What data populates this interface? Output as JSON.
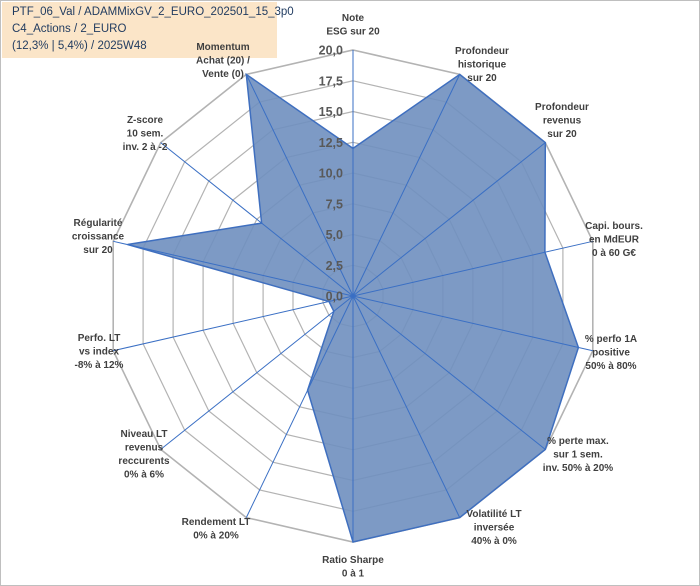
{
  "header": {
    "line1": "PTF_06_Val / ADAMMixGV_2_EURO_202501_15_3p0",
    "line2": "C4_Actions / 2_EURO",
    "line3": "(12,3% | 5,4%) / 2025W48"
  },
  "colors": {
    "area_fill": "#6f8fbf",
    "area_stroke": "#3f6fbf",
    "grid": "#b3b3b3",
    "spoke": "#3a6fc4",
    "header_bg": "#fbe5c8"
  },
  "chart_data": {
    "type": "radar",
    "title": "",
    "range": [
      0,
      20
    ],
    "tick_values": [
      0,
      2.5,
      5,
      7.5,
      10,
      12.5,
      15,
      17.5,
      20
    ],
    "tick_labels": [
      "0,0",
      "2,5",
      "5,0",
      "7,5",
      "10,0",
      "12,5",
      "15,0",
      "17,5",
      "20,0"
    ],
    "axes": [
      [
        "Note",
        "ESG sur 20"
      ],
      [
        "Profondeur",
        "historique",
        "sur 20"
      ],
      [
        "Profondeur",
        "revenus",
        "sur 20"
      ],
      [
        "Capi. bours.",
        "en MdEUR",
        "0 à 60 G€"
      ],
      [
        "% perfo 1A",
        "positive",
        "50% à 80%"
      ],
      [
        "% perte max.",
        "sur 1 sem.",
        "inv. 50% à 20%"
      ],
      [
        "Volatilité LT",
        "inversée",
        "40% à 0%"
      ],
      [
        "Ratio Sharpe",
        "0 à 1"
      ],
      [
        "Rendement LT",
        "0% à 20%"
      ],
      [
        "Niveau LT",
        "revenus",
        "reccurents",
        "0% à 6%"
      ],
      [
        "Perfo. LT",
        "vs index",
        "-8% à 12%"
      ],
      [
        "Régularité",
        "croissance",
        "sur 20"
      ],
      [
        "Z-score",
        "10 sem.",
        "inv. 2 à -2"
      ],
      [
        "Momentum",
        "Achat (20) /",
        "Vente (0)"
      ]
    ],
    "series": [
      {
        "values": [
          12.0,
          20.0,
          20.0,
          16.0,
          18.8,
          20.0,
          20.0,
          20.0,
          8.5,
          2.0,
          2.0,
          18.8,
          9.5,
          20.0
        ]
      }
    ],
    "grid": true,
    "legend": "none"
  }
}
